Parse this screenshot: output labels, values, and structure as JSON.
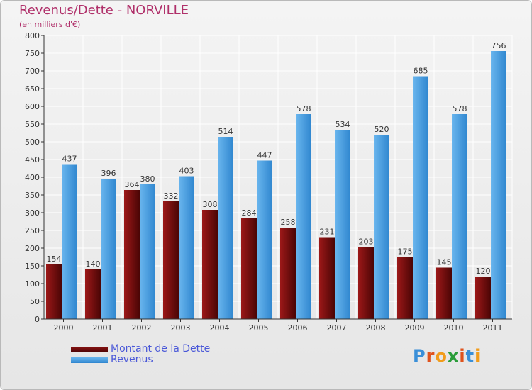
{
  "chart_data": {
    "type": "bar",
    "title": "Revenus/Dette - NORVILLE",
    "subtitle": "(en milliers d'€)",
    "xlabel": "",
    "ylabel": "",
    "categories": [
      "2000",
      "2001",
      "2002",
      "2003",
      "2004",
      "2005",
      "2006",
      "2007",
      "2008",
      "2009",
      "2010",
      "2011"
    ],
    "ylim": [
      0,
      800
    ],
    "yticks": [
      0,
      50,
      100,
      150,
      200,
      250,
      300,
      350,
      400,
      450,
      500,
      550,
      600,
      650,
      700,
      750,
      800
    ],
    "grid": true,
    "legend_position": "bottom-left",
    "series": [
      {
        "name": "Montant de la Dette",
        "color": "#6e0a0a",
        "values": [
          154,
          140,
          364,
          332,
          308,
          284,
          258,
          231,
          203,
          175,
          145,
          120
        ]
      },
      {
        "name": "Revenus",
        "color": "#4a9fe0",
        "values": [
          437,
          396,
          380,
          403,
          514,
          447,
          578,
          534,
          520,
          685,
          578,
          756
        ]
      }
    ]
  },
  "legend": {
    "debt_label": "Montant de la Dette",
    "revenue_label": "Revenus"
  },
  "logo": {
    "letters": [
      "P",
      "r",
      "o",
      "x",
      "i",
      "t",
      "i"
    ],
    "colors": [
      "#3a8fd8",
      "#e0531d",
      "#f29c1a",
      "#2a9d3a",
      "#e0531d",
      "#3a8fd8",
      "#f29c1a"
    ]
  }
}
